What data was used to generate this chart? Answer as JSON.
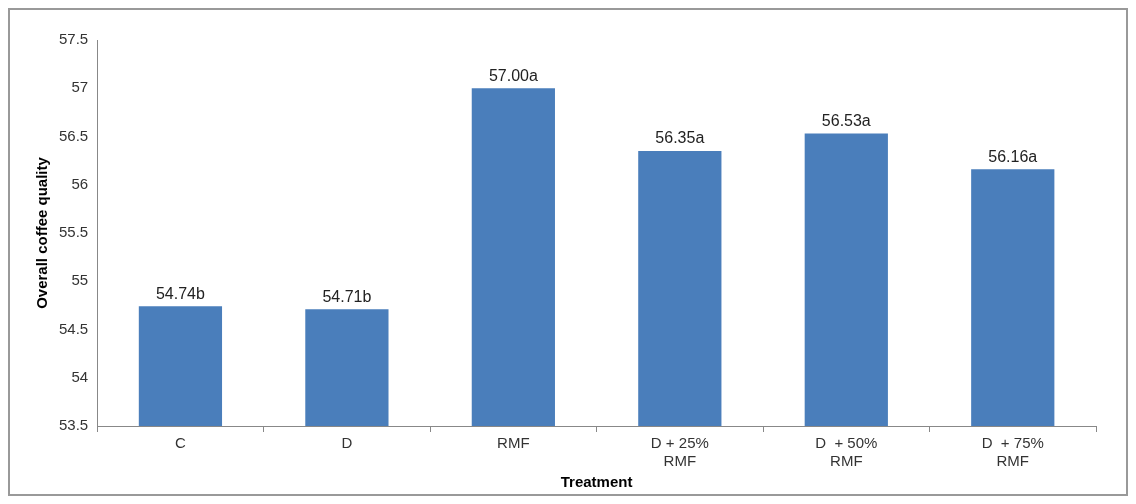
{
  "chart_data": {
    "type": "bar",
    "xlabel": "Treatment",
    "ylabel": "Overall coffee quality",
    "categories": [
      "C",
      "D",
      "RMF",
      "D + 25% RMF",
      "D  + 50% RMF",
      "D  + 75% RMF"
    ],
    "values": [
      54.74,
      54.71,
      57.0,
      56.35,
      56.53,
      56.16
    ],
    "value_labels": [
      "54.74b",
      "54.71b",
      "57.00a",
      "56.35a",
      "56.53a",
      "56.16a"
    ],
    "color": "#4a7ebb",
    "ylim": [
      53.5,
      57.5
    ],
    "yticks": [
      53.5,
      54,
      54.5,
      55,
      55.5,
      56,
      56.5,
      57,
      57.5
    ],
    "grid": false,
    "legend": false
  }
}
